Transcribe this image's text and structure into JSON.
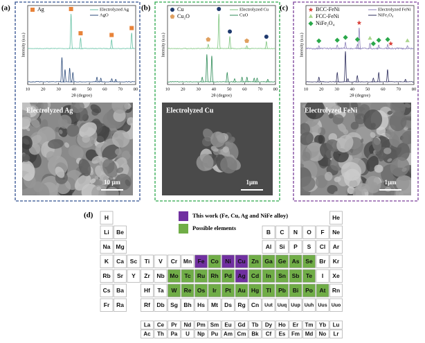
{
  "panels": [
    {
      "label": "(a)",
      "frame_color": "#2f4f8f",
      "x_label": "2θ (degree)",
      "y_label": "Intensity (a.u.)",
      "xlim": [
        10,
        80
      ],
      "xticks": [
        10,
        20,
        30,
        40,
        50,
        60,
        70,
        80
      ],
      "series": [
        {
          "name": "Electrolyzed Ag",
          "color": "#66c2a5",
          "peaks_x": [
            38.1,
            44.3,
            64.4,
            77.4
          ],
          "peaks_height": [
            100,
            30,
            25,
            45
          ]
        },
        {
          "name": "AgO",
          "color": "#2b4a7a",
          "peaks_x": [
            32.2,
            34.2,
            37.2,
            39.3,
            54.9,
            57.4,
            64.5,
            67.1
          ],
          "peaks_height": [
            80,
            40,
            45,
            30,
            15,
            12,
            10,
            8
          ]
        }
      ],
      "markers": [
        {
          "name": "Ag",
          "color": "#e8833a",
          "shape": "square",
          "x": [
            38.1,
            44.3,
            64.4,
            77.4
          ]
        }
      ],
      "image_label": "Electrolyzed Ag",
      "scale_bar": "10 μm",
      "image_tone": "#8a8a8a"
    },
    {
      "label": "(b)",
      "frame_color": "#2aa84a",
      "x_label": "2θ (degree)",
      "y_label": "Intensity (a.u.)",
      "xlim": [
        10,
        80
      ],
      "xticks": [
        10,
        20,
        30,
        40,
        50,
        60,
        70,
        80
      ],
      "series": [
        {
          "name": "Electrolyzed Cu",
          "color": "#7dc57d",
          "peaks_x": [
            36.4,
            43.3,
            50.4,
            61.4,
            74.1
          ],
          "peaks_height": [
            12,
            100,
            35,
            8,
            20
          ]
        },
        {
          "name": "CuO",
          "color": "#2e8b57",
          "peaks_x": [
            32.5,
            35.5,
            38.7,
            48.7,
            53.5,
            58.3,
            61.5,
            66.2,
            68.1,
            75.0
          ],
          "peaks_height": [
            15,
            90,
            85,
            30,
            10,
            15,
            15,
            12,
            12,
            8
          ]
        }
      ],
      "markers": [
        {
          "name": "Cu",
          "color": "#1f3a6e",
          "shape": "circle",
          "x": [
            43.3,
            50.4,
            74.1
          ]
        },
        {
          "name": "Cu₂O",
          "color": "#e0a060",
          "shape": "pentagon",
          "x": [
            36.4,
            61.4
          ]
        }
      ],
      "image_label": "Electrolyzed Cu",
      "scale_bar": "1μm",
      "image_tone": "#4a4a4a"
    },
    {
      "label": "(c)",
      "frame_color": "#7a3f9a",
      "x_label": "2θ (degree)",
      "y_label": "Intensity (a.u.)",
      "xlim": [
        10,
        80
      ],
      "xticks": [
        10,
        20,
        30,
        40,
        50,
        60,
        70,
        80
      ],
      "series": [
        {
          "name": "Electrolyzed FeNi",
          "color": "#8a7fb8",
          "peaks_x": [
            18.4,
            30.3,
            35.6,
            43.4,
            44.5,
            51.5,
            57.2,
            63.0,
            75.8
          ],
          "peaks_height": [
            8,
            10,
            18,
            12,
            60,
            15,
            10,
            12,
            8
          ]
        },
        {
          "name": "NiFe₂O₄",
          "color": "#2a2a5a",
          "peaks_x": [
            18.4,
            30.3,
            35.6,
            37.2,
            43.3,
            53.7,
            57.2,
            62.9,
            74.5
          ],
          "peaks_height": [
            15,
            30,
            100,
            10,
            20,
            12,
            30,
            40,
            8
          ]
        }
      ],
      "markers": [
        {
          "name": "BCC-FeNi",
          "color": "#d9413a",
          "shape": "star",
          "x": [
            44.5,
            65.0
          ]
        },
        {
          "name": "FCC-FeNi",
          "color": "#a8d48a",
          "shape": "triangle",
          "x": [
            51.5,
            75.8
          ]
        },
        {
          "name": "NiFe₂O₄",
          "color": "#2aa84a",
          "shape": "diamond",
          "x": [
            18.4,
            30.3,
            35.6,
            43.4,
            53.7,
            57.2,
            63.0
          ]
        }
      ],
      "image_label": "Electrolyzed FeNi",
      "scale_bar": "1μm",
      "image_tone": "#8c8c8c"
    }
  ],
  "periodic_table": {
    "label": "(d)",
    "legend": [
      {
        "label": "This work (Fe, Cu, Ag and NiFe alloy)",
        "color": "#7030a0",
        "elements": [
          "Fe",
          "Ni",
          "Cu",
          "Ag"
        ]
      },
      {
        "label": "Possible elements",
        "color": "#70ad47",
        "elements": [
          "Co",
          "Zn",
          "Ga",
          "Ge",
          "As",
          "Se",
          "Mo",
          "Tc",
          "Ru",
          "Rh",
          "Pd",
          "Cd",
          "In",
          "Sn",
          "Sb",
          "Te",
          "W",
          "Re",
          "Os",
          "Ir",
          "Pt",
          "Au",
          "Hg",
          "Tl",
          "Pb",
          "Bi",
          "Po",
          "At"
        ]
      }
    ],
    "rows": [
      [
        "H",
        null,
        null,
        null,
        null,
        null,
        null,
        null,
        null,
        null,
        null,
        null,
        null,
        null,
        null,
        null,
        null,
        "He"
      ],
      [
        "Li",
        "Be",
        null,
        null,
        null,
        null,
        null,
        null,
        null,
        null,
        null,
        null,
        "B",
        "C",
        "N",
        "O",
        "F",
        "Ne"
      ],
      [
        "Na",
        "Mg",
        null,
        null,
        null,
        null,
        null,
        null,
        null,
        null,
        null,
        null,
        "Al",
        "Si",
        "P",
        "S",
        "Cl",
        "Ar"
      ],
      [
        "K",
        "Ca",
        "Sc",
        "Ti",
        "V",
        "Cr",
        "Mn",
        "Fe",
        "Co",
        "Ni",
        "Cu",
        "Zn",
        "Ga",
        "Ge",
        "As",
        "Se",
        "Br",
        "Kr"
      ],
      [
        "Rb",
        "Sr",
        "Y",
        "Zr",
        "Nb",
        "Mo",
        "Tc",
        "Ru",
        "Rh",
        "Pd",
        "Ag",
        "Cd",
        "In",
        "Sn",
        "Sb",
        "Te",
        "I",
        "Xe"
      ],
      [
        "Cs",
        "Ba",
        null,
        "Hf",
        "Ta",
        "W",
        "Re",
        "Os",
        "Ir",
        "Pt",
        "Au",
        "Hg",
        "Tl",
        "Pb",
        "Bi",
        "Po",
        "At",
        "Rn"
      ],
      [
        "Fr",
        "Ra",
        null,
        "Rf",
        "Db",
        "Sg",
        "Bh",
        "Hs",
        "Mt",
        "Ds",
        "Rg",
        "Cn",
        "Uut",
        "Uuq",
        "Uup",
        "Uuh",
        "Uus",
        "Uuo"
      ]
    ],
    "f_block": [
      [
        "La",
        "Ce",
        "Pr",
        "Nd",
        "Pm",
        "Sm",
        "Eu",
        "Gd",
        "Tb",
        "Dy",
        "Ho",
        "Er",
        "Tm",
        "Yb",
        "Lu"
      ],
      [
        "Ac",
        "Th",
        "Pa",
        "U",
        "Np",
        "Pu",
        "Am",
        "Cm",
        "Bk",
        "Cf",
        "Es",
        "Fm",
        "Md",
        "No",
        "Lr"
      ]
    ]
  }
}
